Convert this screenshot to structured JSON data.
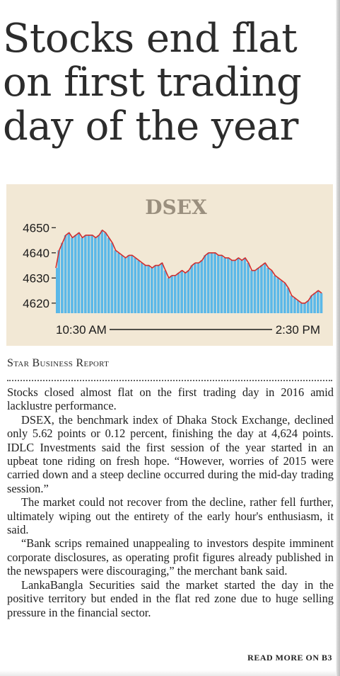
{
  "headline": "Stocks end flat on first trading day of the year",
  "byline": "Star Business Report",
  "chart_data": {
    "type": "area",
    "title": "DSEX",
    "ylim": [
      4616,
      4656
    ],
    "yticks": [
      4620,
      4630,
      4640,
      4650
    ],
    "x_start_label": "10:30 AM",
    "x_end_label": "2:30 PM",
    "grid": false,
    "series": [
      {
        "values": [
          4634,
          4641,
          4644,
          4647,
          4648,
          4646,
          4647,
          4648,
          4646,
          4647,
          4647,
          4647,
          4646,
          4647,
          4649,
          4648,
          4646,
          4644,
          4641,
          4640,
          4639,
          4638,
          4639,
          4639,
          4638,
          4637,
          4636,
          4635,
          4635,
          4634,
          4635,
          4635,
          4636,
          4633,
          4630,
          4631,
          4631,
          4632,
          4633,
          4632,
          4633,
          4635,
          4636,
          4636,
          4637,
          4639,
          4640,
          4640,
          4640,
          4639,
          4639,
          4638,
          4638,
          4637,
          4637,
          4638,
          4637,
          4638,
          4636,
          4633,
          4633,
          4634,
          4635,
          4636,
          4634,
          4633,
          4631,
          4630,
          4629,
          4628,
          4626,
          4623,
          4622,
          4621,
          4620,
          4620,
          4621,
          4623,
          4624,
          4625,
          4624
        ]
      }
    ],
    "colors": {
      "fill": "#5bb8e8",
      "line": "#d32f2f",
      "background": "#f2e8d5",
      "title": "#9a8f7e"
    }
  },
  "paragraphs": [
    "Stocks closed almost flat on the first trading day in 2016 amid lacklustre performance.",
    "DSEX, the benchmark index of Dhaka Stock Exchange, declined only 5.62 points or 0.12 percent, finishing the day at 4,624 points. IDLC Investments said the first session of the year started in an upbeat tone riding on fresh hope. “However, worries of 2015 were carried down and a steep decline occurred during the mid-day trading session.”",
    "The market could not recover from the decline, rather fell further, ultimately wiping out the entirety of the early hour's enthusiasm, it said.",
    "“Bank scrips remained unappealing to investors despite imminent corporate disclosures, as operating profit figures already published in the newspapers were discouraging,” the merchant bank said.",
    "LankaBangla Securities said the market started the day in the positive territory but ended in the flat red zone due to huge selling pressure in the financial sector."
  ],
  "read_more": "READ MORE ON B3"
}
